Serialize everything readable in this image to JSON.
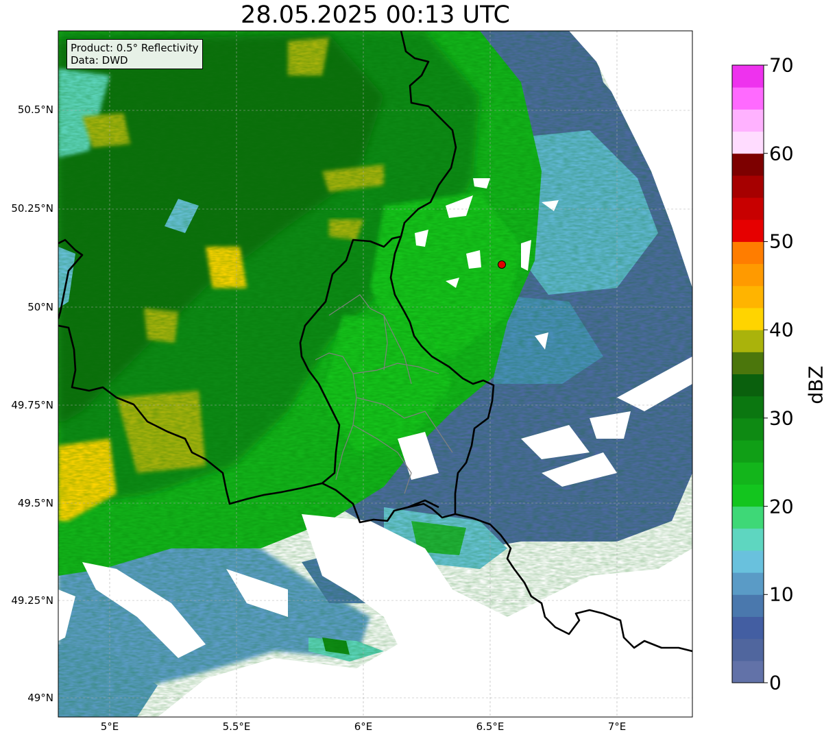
{
  "title": "28.05.2025 00:13 UTC",
  "info_box": {
    "product": "Product: 0.5° Reflectivity",
    "data": "Data: DWD"
  },
  "lat_labels": [
    "50.5°N",
    "50.25°N",
    "50°N",
    "49.75°N",
    "49.5°N",
    "49.25°N",
    "49°N"
  ],
  "lon_labels": [
    "5°E",
    "5.5°E",
    "6°E",
    "6.5°E",
    "7°E"
  ],
  "colorbar": {
    "label": "dBZ",
    "ticks": [
      "0",
      "10",
      "20",
      "30",
      "40",
      "50",
      "60",
      "70"
    ],
    "min": 0,
    "max": 70,
    "colors": [
      "#6272a8",
      "#50669e",
      "#435ea2",
      "#4a78ad",
      "#5a9bc6",
      "#69c1dd",
      "#5ed6c0",
      "#3ed877",
      "#13c51e",
      "#13b51b",
      "#109f16",
      "#0e8a13",
      "#0b7710",
      "#0a600d",
      "#4b760c",
      "#aab30b",
      "#ffd400",
      "#ffb400",
      "#ff9a00",
      "#ff7d00",
      "#e60000",
      "#c80000",
      "#a60000",
      "#7d0000",
      "#ffdcff",
      "#ffb2ff",
      "#ff6aff",
      "#ee32ee"
    ]
  },
  "radar_site": {
    "lon": 6.55,
    "lat": 50.11,
    "color": "#e00000"
  },
  "map_extent": {
    "lon_min": 4.8,
    "lon_max": 7.3,
    "lat_min": 48.95,
    "lat_max": 50.7
  },
  "layers": [
    "reflectivity",
    "country-borders",
    "district-borders",
    "gridlines"
  ]
}
